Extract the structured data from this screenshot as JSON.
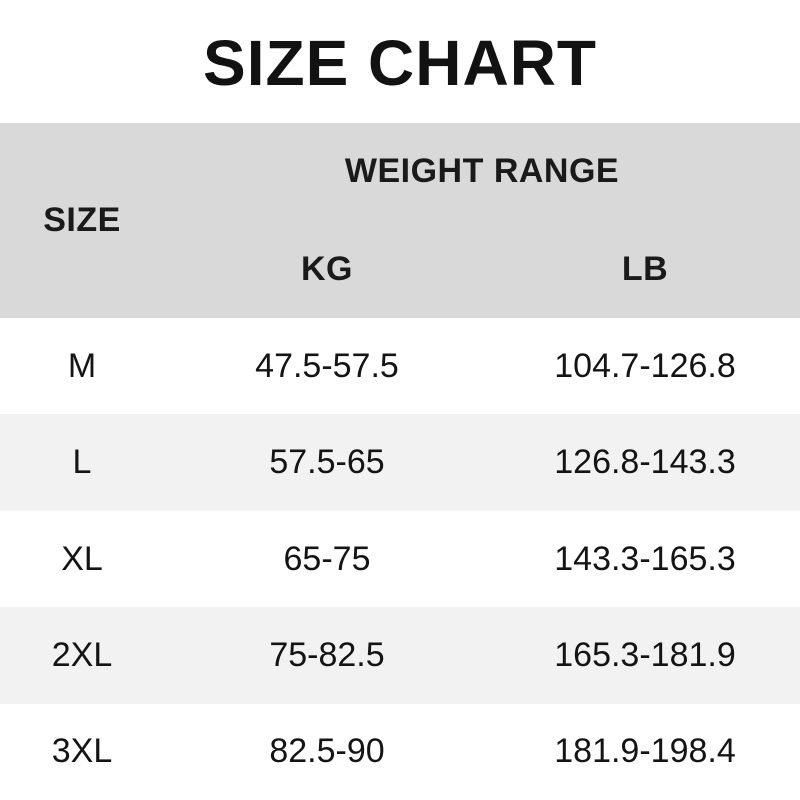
{
  "title": "SIZE CHART",
  "chart_data": {
    "type": "table",
    "title": "SIZE CHART",
    "columns": [
      "SIZE",
      "KG",
      "LB"
    ],
    "group_header": {
      "label": "WEIGHT RANGE",
      "spans": [
        "KG",
        "LB"
      ]
    },
    "rows": [
      [
        "M",
        "47.5-57.5",
        "104.7-126.8"
      ],
      [
        "L",
        "57.5-65",
        "126.8-143.3"
      ],
      [
        "XL",
        "65-75",
        "143.3-165.3"
      ],
      [
        "2XL",
        "75-82.5",
        "165.3-181.9"
      ],
      [
        "3XL",
        "82.5-90",
        "181.9-198.4"
      ]
    ],
    "layout": {
      "stripe_rows": "even rows shaded",
      "legend": "none",
      "grid": "off"
    }
  },
  "colors": {
    "page_bg": "#ffffff",
    "header_bg": "#d9d9d9",
    "stripe_bg": "#f2f2f2",
    "text": "#141414"
  }
}
